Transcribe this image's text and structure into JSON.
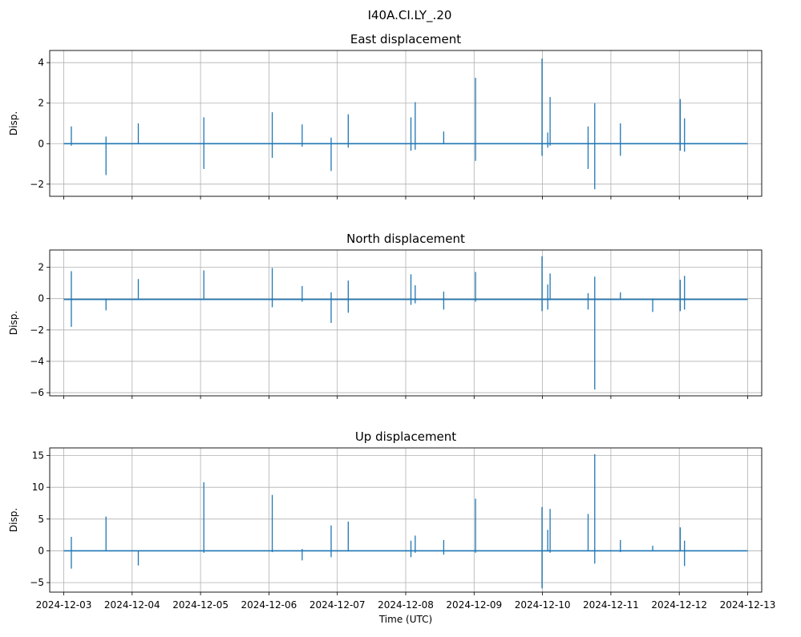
{
  "suptitle": "I40A.CI.LY_.20",
  "colors": {
    "line": "#1f77b4",
    "grid": "#b0b0b0",
    "axes": "#000000"
  },
  "chart_data": [
    {
      "type": "line",
      "title": "East displacement",
      "ylabel": "Disp.",
      "xlabel": "",
      "grid": true,
      "xlim": [
        "2024-12-03",
        "2024-12-13"
      ],
      "ylim": [
        -2.6,
        4.6
      ],
      "yticks": [
        -2,
        0,
        2,
        4
      ],
      "ytick_labels": [
        "−2",
        "0",
        "2",
        "4"
      ],
      "show_xtick_labels": false,
      "baseline": 0.0,
      "events": [
        {
          "t": "2024-12-03T02:40",
          "max": 0.85,
          "min": -0.1
        },
        {
          "t": "2024-12-03T14:50",
          "max": 0.35,
          "min": -1.55
        },
        {
          "t": "2024-12-04T02:10",
          "max": 1.0,
          "min": 0.0
        },
        {
          "t": "2024-12-05T01:10",
          "max": 1.3,
          "min": -1.25
        },
        {
          "t": "2024-12-06T01:10",
          "max": 1.55,
          "min": -0.7
        },
        {
          "t": "2024-12-06T11:40",
          "max": 0.95,
          "min": -0.15
        },
        {
          "t": "2024-12-06T21:50",
          "max": 0.3,
          "min": -1.35
        },
        {
          "t": "2024-12-07T03:50",
          "max": 1.45,
          "min": -0.2
        },
        {
          "t": "2024-12-08T01:50",
          "max": 1.3,
          "min": -0.35
        },
        {
          "t": "2024-12-08T03:20",
          "max": 2.05,
          "min": -0.3
        },
        {
          "t": "2024-12-08T13:20",
          "max": 0.6,
          "min": 0.0
        },
        {
          "t": "2024-12-09T00:30",
          "max": 3.25,
          "min": -0.85
        },
        {
          "t": "2024-12-09T23:50",
          "max": 4.2,
          "min": -0.6
        },
        {
          "t": "2024-12-10T01:50",
          "max": 0.55,
          "min": -0.2
        },
        {
          "t": "2024-12-10T02:40",
          "max": 2.3,
          "min": -0.1
        },
        {
          "t": "2024-12-10T16:00",
          "max": 0.85,
          "min": -1.25
        },
        {
          "t": "2024-12-10T18:20",
          "max": 2.0,
          "min": -2.25
        },
        {
          "t": "2024-12-11T03:20",
          "max": 1.0,
          "min": -0.6
        },
        {
          "t": "2024-12-12T00:20",
          "max": 2.2,
          "min": -0.35
        },
        {
          "t": "2024-12-12T01:50",
          "max": 1.25,
          "min": -0.4
        }
      ]
    },
    {
      "type": "line",
      "title": "North displacement",
      "ylabel": "Disp.",
      "xlabel": "",
      "grid": true,
      "xlim": [
        "2024-12-03",
        "2024-12-13"
      ],
      "ylim": [
        -6.2,
        3.1
      ],
      "yticks": [
        -6,
        -4,
        -2,
        0,
        2
      ],
      "ytick_labels": [
        "−6",
        "−4",
        "−2",
        "0",
        "2"
      ],
      "show_xtick_labels": false,
      "baseline": -0.05,
      "events": [
        {
          "t": "2024-12-03T02:40",
          "max": 1.75,
          "min": -1.8
        },
        {
          "t": "2024-12-03T14:50",
          "max": 0.0,
          "min": -0.75
        },
        {
          "t": "2024-12-04T02:10",
          "max": 1.25,
          "min": 0.0
        },
        {
          "t": "2024-12-05T01:10",
          "max": 1.8,
          "min": 0.0
        },
        {
          "t": "2024-12-06T01:10",
          "max": 1.95,
          "min": -0.55
        },
        {
          "t": "2024-12-06T11:40",
          "max": 0.8,
          "min": -0.2
        },
        {
          "t": "2024-12-06T21:50",
          "max": 0.4,
          "min": -1.55
        },
        {
          "t": "2024-12-07T03:50",
          "max": 1.15,
          "min": -0.9
        },
        {
          "t": "2024-12-08T01:50",
          "max": 1.55,
          "min": -0.4
        },
        {
          "t": "2024-12-08T03:20",
          "max": 0.85,
          "min": -0.3
        },
        {
          "t": "2024-12-08T13:20",
          "max": 0.45,
          "min": -0.7
        },
        {
          "t": "2024-12-09T00:30",
          "max": 1.7,
          "min": -0.2
        },
        {
          "t": "2024-12-09T23:50",
          "max": 2.7,
          "min": -0.8
        },
        {
          "t": "2024-12-10T01:50",
          "max": 0.9,
          "min": -0.7
        },
        {
          "t": "2024-12-10T02:40",
          "max": 1.6,
          "min": -0.1
        },
        {
          "t": "2024-12-10T16:00",
          "max": 0.35,
          "min": -0.7
        },
        {
          "t": "2024-12-10T18:20",
          "max": 1.4,
          "min": -5.8
        },
        {
          "t": "2024-12-11T03:20",
          "max": 0.4,
          "min": 0.0
        },
        {
          "t": "2024-12-11T14:40",
          "max": 0.0,
          "min": -0.85
        },
        {
          "t": "2024-12-12T00:20",
          "max": 1.2,
          "min": -0.8
        },
        {
          "t": "2024-12-12T01:50",
          "max": 1.45,
          "min": -0.7
        }
      ]
    },
    {
      "type": "line",
      "title": "Up displacement",
      "ylabel": "Disp.",
      "xlabel": "Time (UTC)",
      "grid": true,
      "xlim": [
        "2024-12-03",
        "2024-12-13"
      ],
      "ylim": [
        -6.5,
        16.2
      ],
      "yticks": [
        -5,
        0,
        5,
        10,
        15
      ],
      "ytick_labels": [
        "−5",
        "0",
        "5",
        "10",
        "15"
      ],
      "show_xtick_labels": true,
      "xtick_labels": [
        "2024-12-03",
        "2024-12-04",
        "2024-12-05",
        "2024-12-06",
        "2024-12-07",
        "2024-12-08",
        "2024-12-09",
        "2024-12-10",
        "2024-12-11",
        "2024-12-12",
        "2024-12-13"
      ],
      "baseline": 0.0,
      "events": [
        {
          "t": "2024-12-03T02:40",
          "max": 2.2,
          "min": -2.8
        },
        {
          "t": "2024-12-03T14:50",
          "max": 5.4,
          "min": 0.0
        },
        {
          "t": "2024-12-04T02:10",
          "max": 0.0,
          "min": -2.3
        },
        {
          "t": "2024-12-05T01:10",
          "max": 10.8,
          "min": -0.3
        },
        {
          "t": "2024-12-06T01:10",
          "max": 8.8,
          "min": -0.2
        },
        {
          "t": "2024-12-06T11:40",
          "max": 0.3,
          "min": -1.5
        },
        {
          "t": "2024-12-06T21:50",
          "max": 4.0,
          "min": -1.0
        },
        {
          "t": "2024-12-07T03:50",
          "max": 4.6,
          "min": -0.1
        },
        {
          "t": "2024-12-08T01:50",
          "max": 1.6,
          "min": -1.0
        },
        {
          "t": "2024-12-08T03:20",
          "max": 2.4,
          "min": -0.3
        },
        {
          "t": "2024-12-08T13:20",
          "max": 1.7,
          "min": -0.6
        },
        {
          "t": "2024-12-09T00:30",
          "max": 8.2,
          "min": -0.3
        },
        {
          "t": "2024-12-09T23:50",
          "max": 6.9,
          "min": -5.9
        },
        {
          "t": "2024-12-10T01:50",
          "max": 3.3,
          "min": -0.1
        },
        {
          "t": "2024-12-10T02:40",
          "max": 6.6,
          "min": -0.3
        },
        {
          "t": "2024-12-10T16:00",
          "max": 5.8,
          "min": 0.0
        },
        {
          "t": "2024-12-10T18:20",
          "max": 15.2,
          "min": -2.0
        },
        {
          "t": "2024-12-11T03:20",
          "max": 1.7,
          "min": -0.2
        },
        {
          "t": "2024-12-11T14:40",
          "max": 0.8,
          "min": 0.0
        },
        {
          "t": "2024-12-12T00:20",
          "max": 3.7,
          "min": 0.0
        },
        {
          "t": "2024-12-12T01:50",
          "max": 1.6,
          "min": -2.4
        }
      ]
    }
  ]
}
